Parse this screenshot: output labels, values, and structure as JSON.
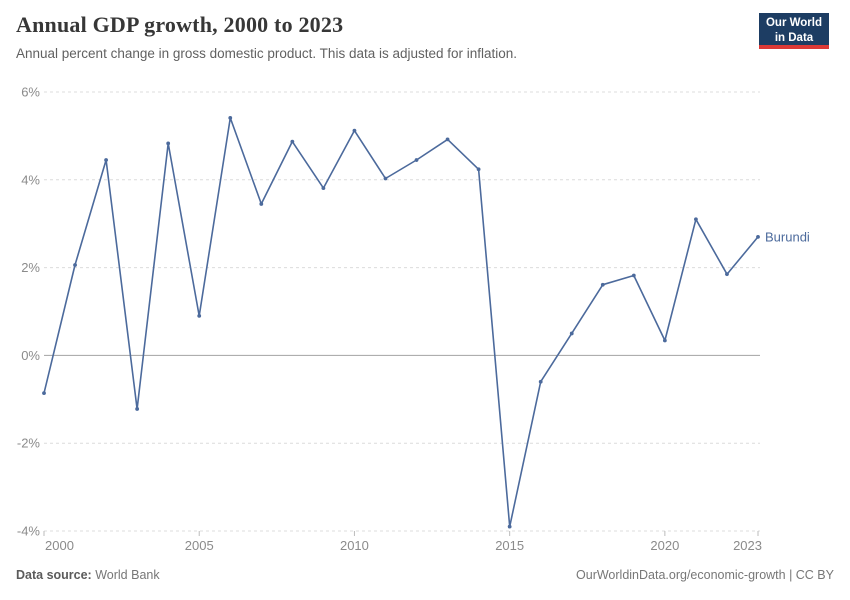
{
  "header": {
    "title": "Annual GDP growth, 2000 to 2023",
    "subtitle": "Annual percent change in gross domestic product. This data is adjusted for inflation.",
    "logo": {
      "line1": "Our World",
      "line2": "in Data",
      "bg_color": "#1d3d63",
      "accent_color": "#dc3936"
    }
  },
  "chart_data": {
    "type": "line",
    "title": "Annual GDP growth, 2000 to 2023",
    "xlabel": "",
    "ylabel": "",
    "xlim": [
      2000,
      2023
    ],
    "ylim": [
      -4,
      6
    ],
    "grid": "horizontal-dashed",
    "zero_line": true,
    "legend_position": "end-of-line-label",
    "x_ticks": [
      2000,
      2005,
      2010,
      2015,
      2020,
      2023
    ],
    "y_ticks": [
      6,
      4,
      2,
      0,
      -2,
      -4
    ],
    "y_tick_labels": [
      "6%",
      "4%",
      "2%",
      "0%",
      "-2%",
      "-4%"
    ],
    "x": [
      2000,
      2001,
      2002,
      2003,
      2004,
      2005,
      2006,
      2007,
      2008,
      2009,
      2010,
      2011,
      2012,
      2013,
      2014,
      2015,
      2016,
      2017,
      2018,
      2019,
      2020,
      2021,
      2022,
      2023
    ],
    "series": [
      {
        "name": "Burundi",
        "color": "#4C6A9C",
        "values": [
          -0.86,
          2.06,
          4.45,
          -1.22,
          4.83,
          0.9,
          5.41,
          3.45,
          4.87,
          3.81,
          5.12,
          4.03,
          4.45,
          4.92,
          4.24,
          -3.9,
          -0.6,
          0.5,
          1.61,
          1.82,
          0.34,
          3.1,
          1.85,
          2.7
        ]
      }
    ]
  },
  "footer": {
    "source_label": "Data source:",
    "source_value": "World Bank",
    "right_text": "OurWorldinData.org/economic-growth | CC BY"
  },
  "colors": {
    "line": "#4C6A9C",
    "grid": "#dcdcdc",
    "zero_line": "#a3a3a3",
    "tick_mark": "#bbbbbb",
    "axis_text": "#8b8b8b",
    "title_text": "#373737",
    "subtitle_text": "#616161",
    "footer_text": "#777777"
  }
}
